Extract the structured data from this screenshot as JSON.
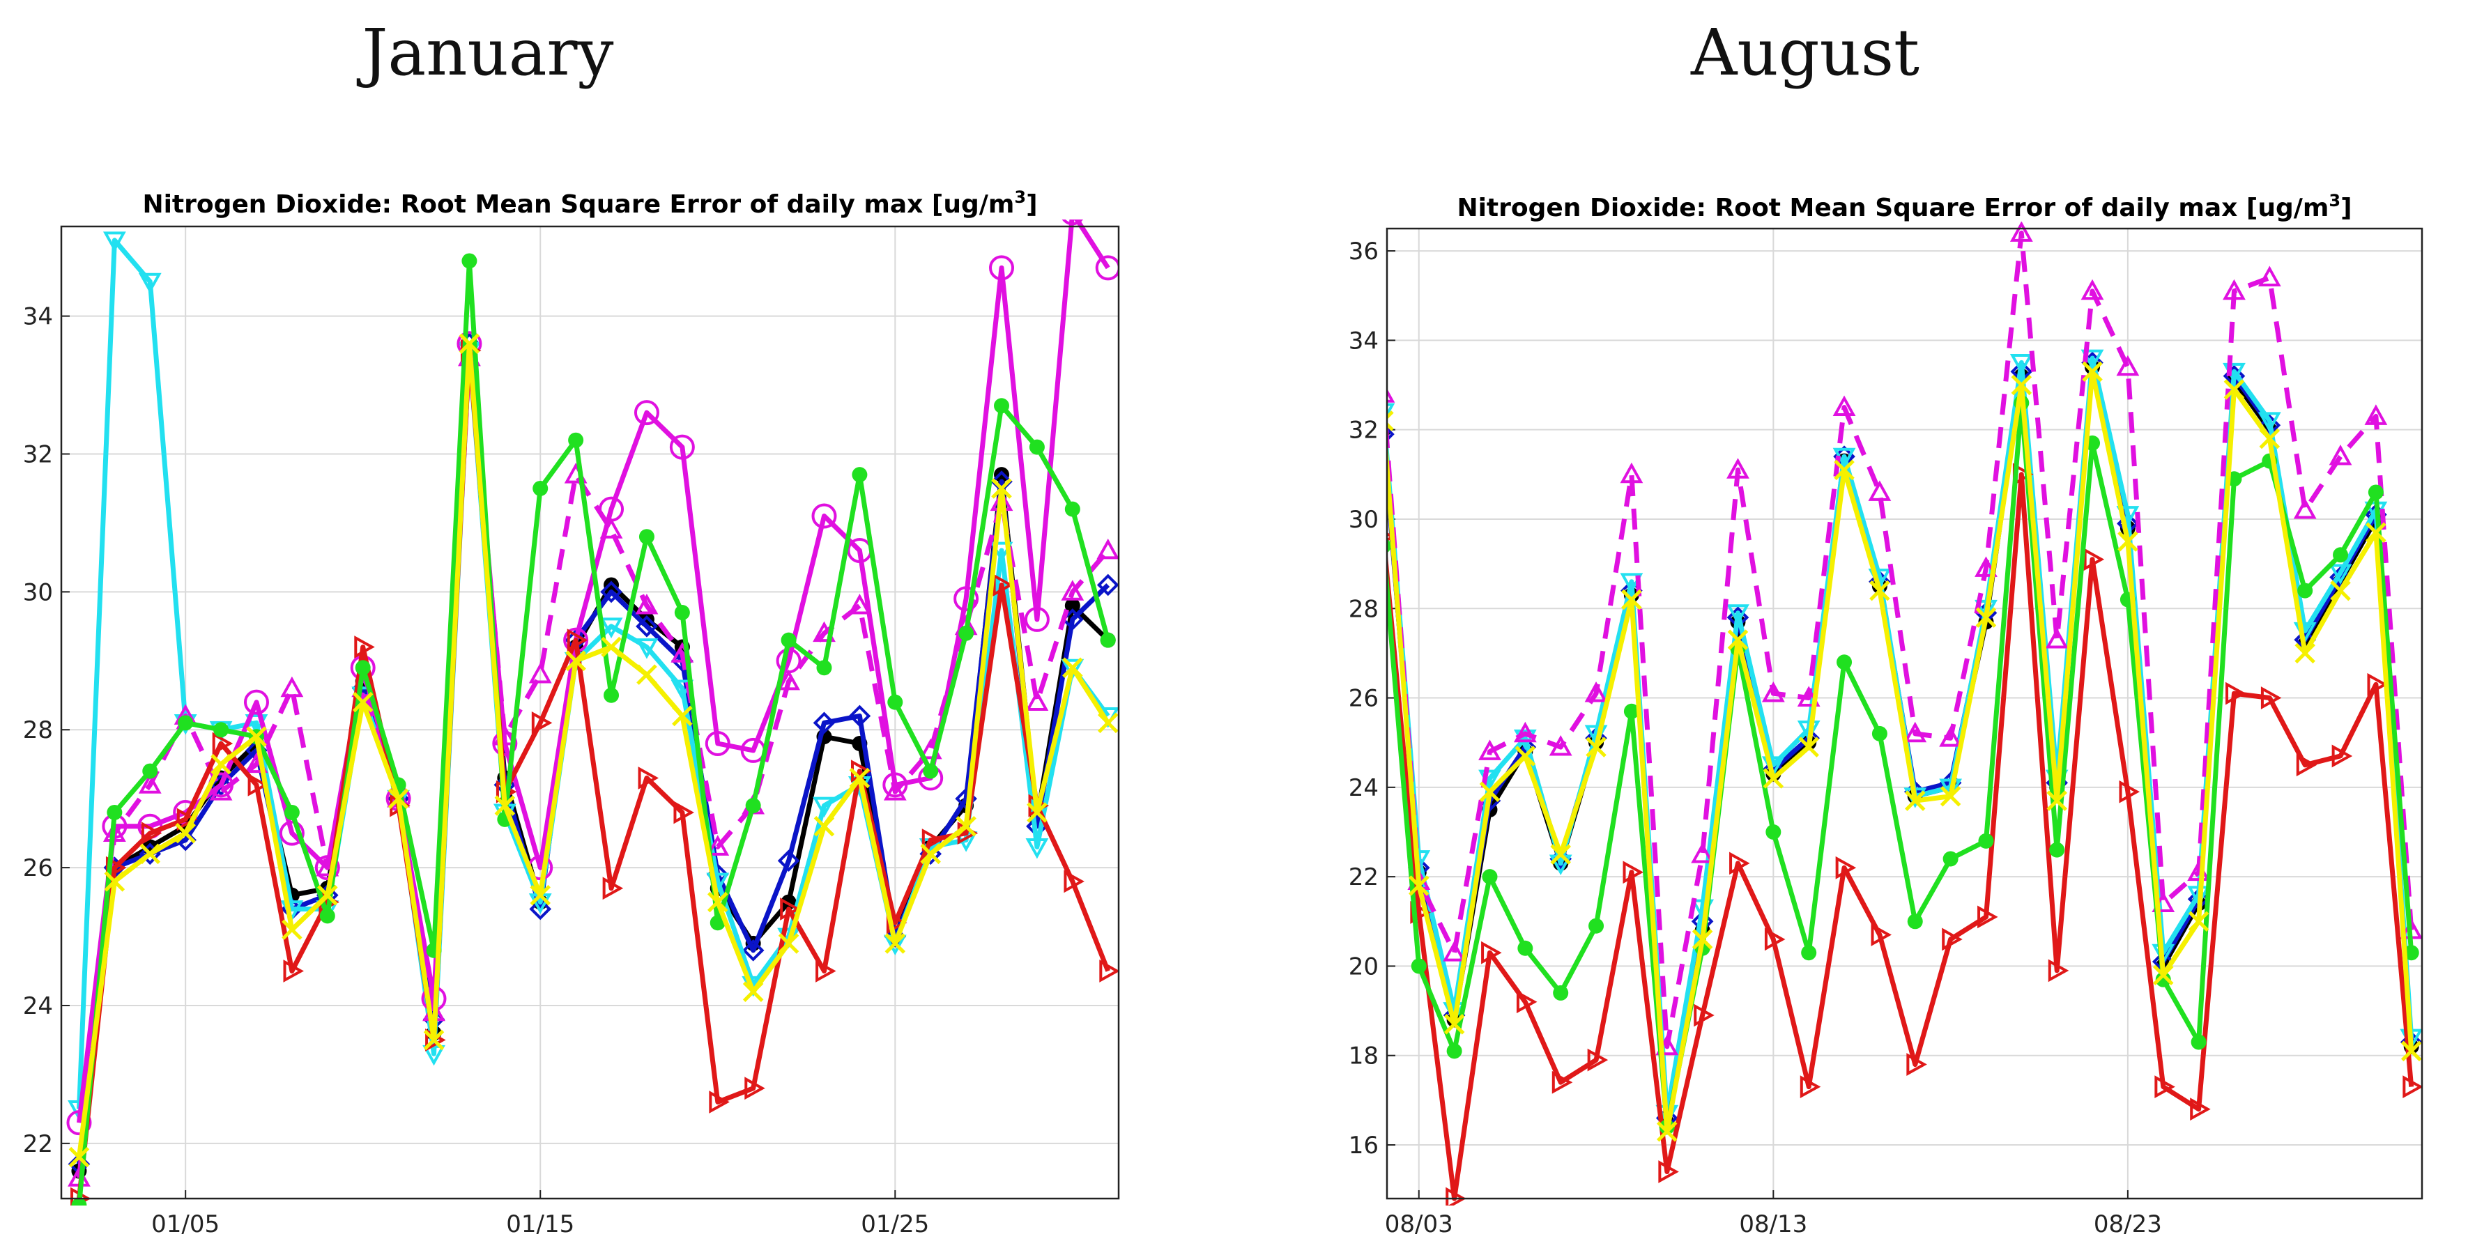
{
  "panels": {
    "left_heading": "January",
    "right_heading": "August"
  },
  "chart_data": [
    {
      "type": "line",
      "title": "Nitrogen Dioxide: Root Mean Square Error of daily max [ug/m³]",
      "title_main": "Nitrogen Dioxide: Root Mean Square Error of daily max [ug/m",
      "title_sup": "3",
      "title_end": "]",
      "xlabel": "",
      "ylabel": "",
      "xlim": [
        1.5,
        31.3
      ],
      "ylim": [
        21.2,
        35.3
      ],
      "yticks": [
        22,
        24,
        26,
        28,
        30,
        32,
        34
      ],
      "xticks": [
        {
          "value": 5,
          "label": "01/05"
        },
        {
          "value": 15,
          "label": "01/15"
        },
        {
          "value": 25,
          "label": "01/25"
        }
      ],
      "x": [
        2,
        3,
        4,
        5,
        6,
        7,
        8,
        9,
        10,
        11,
        12,
        13,
        14,
        15,
        16,
        17,
        18,
        19,
        20,
        21,
        22,
        23,
        24,
        25,
        26,
        27,
        28,
        29,
        30,
        31
      ],
      "series": [
        {
          "name": "black",
          "color": "#000000",
          "marker": "dot",
          "dash": false,
          "values": [
            21.6,
            26.0,
            26.3,
            26.6,
            27.3,
            27.8,
            25.6,
            25.7,
            28.7,
            27.1,
            23.6,
            33.5,
            27.3,
            25.5,
            29.2,
            30.1,
            29.6,
            29.2,
            25.7,
            24.9,
            25.5,
            27.9,
            27.8,
            25.0,
            26.3,
            26.9,
            31.7,
            26.7,
            29.8,
            29.3
          ]
        },
        {
          "name": "blue",
          "color": "#0a14c8",
          "marker": "diamond",
          "dash": false,
          "values": [
            21.7,
            26.0,
            26.2,
            26.4,
            27.2,
            27.7,
            25.4,
            25.6,
            28.6,
            27.0,
            23.8,
            33.6,
            27.2,
            25.4,
            29.3,
            30.0,
            29.5,
            29.0,
            25.9,
            24.8,
            26.1,
            28.1,
            28.2,
            25.0,
            26.2,
            27.0,
            31.6,
            26.6,
            29.6,
            30.1
          ]
        },
        {
          "name": "cyan",
          "color": "#22e0f0",
          "marker": "triangle-down",
          "dash": false,
          "values": [
            22.5,
            35.1,
            34.5,
            28.1,
            28.0,
            28.1,
            25.4,
            25.4,
            28.5,
            27.0,
            23.3,
            33.5,
            26.8,
            25.5,
            29.0,
            29.5,
            29.2,
            28.6,
            25.8,
            24.3,
            25.0,
            26.9,
            27.2,
            24.9,
            26.3,
            26.4,
            30.6,
            26.3,
            28.9,
            28.2
          ]
        },
        {
          "name": "magenta-solid",
          "color": "#e010e0",
          "marker": "circle",
          "dash": false,
          "values": [
            22.3,
            26.6,
            26.6,
            26.8,
            27.2,
            28.4,
            26.5,
            26.0,
            28.9,
            27.0,
            24.1,
            33.6,
            27.8,
            26.0,
            29.3,
            31.2,
            32.6,
            32.1,
            27.8,
            27.7,
            29.0,
            31.1,
            30.6,
            27.2,
            27.3,
            29.9,
            34.7,
            29.6,
            35.5,
            34.7
          ]
        },
        {
          "name": "magenta-dashed",
          "color": "#e010e0",
          "marker": "triangle-up",
          "dash": true,
          "values": [
            21.5,
            26.5,
            27.2,
            28.2,
            27.1,
            27.5,
            28.6,
            26.0,
            28.6,
            27.0,
            23.9,
            33.4,
            27.9,
            28.8,
            31.7,
            30.9,
            29.8,
            29.1,
            26.3,
            26.9,
            28.7,
            29.4,
            29.8,
            27.1,
            27.7,
            29.5,
            31.3,
            28.4,
            30.0,
            30.6
          ]
        },
        {
          "name": "red",
          "color": "#e01818",
          "marker": "triangle-right",
          "dash": false,
          "values": [
            21.2,
            26.0,
            26.5,
            26.7,
            27.8,
            27.2,
            24.5,
            25.5,
            29.2,
            26.9,
            23.5,
            33.5,
            27.1,
            28.1,
            29.3,
            25.7,
            27.3,
            26.8,
            22.6,
            22.8,
            25.4,
            24.5,
            27.4,
            25.2,
            26.4,
            26.5,
            30.1,
            26.9,
            25.8,
            24.5
          ]
        },
        {
          "name": "green",
          "color": "#20e020",
          "marker": "dot",
          "dash": false,
          "values": [
            21.1,
            26.8,
            27.4,
            28.1,
            28.0,
            27.9,
            26.8,
            25.3,
            28.9,
            27.2,
            24.8,
            34.8,
            26.7,
            31.5,
            32.2,
            28.5,
            30.8,
            29.7,
            25.2,
            26.9,
            29.3,
            28.9,
            31.7,
            28.4,
            27.4,
            29.4,
            32.7,
            32.1,
            31.2,
            29.3
          ]
        },
        {
          "name": "yellow",
          "color": "#f5f000",
          "marker": "x",
          "dash": false,
          "values": [
            21.8,
            25.8,
            26.2,
            26.5,
            27.5,
            27.9,
            25.1,
            25.6,
            28.4,
            27.0,
            23.5,
            33.6,
            26.9,
            25.6,
            29.0,
            29.2,
            28.8,
            28.2,
            25.5,
            24.2,
            24.9,
            26.6,
            27.3,
            24.9,
            26.2,
            26.6,
            31.5,
            26.8,
            28.9,
            28.1
          ]
        }
      ]
    },
    {
      "type": "line",
      "title": "Nitrogen Dioxide: Root Mean Square Error of daily max [ug/m³]",
      "title_main": "Nitrogen Dioxide: Root Mean Square Error of daily max [ug/m",
      "title_sup": "3",
      "title_end": "]",
      "xlabel": "",
      "ylabel": "",
      "xlim": [
        2.1,
        31.3
      ],
      "ylim": [
        14.8,
        36.5
      ],
      "yticks": [
        16,
        18,
        20,
        22,
        24,
        26,
        28,
        30,
        32,
        34,
        36
      ],
      "xticks": [
        {
          "value": 3,
          "label": "08/03"
        },
        {
          "value": 13,
          "label": "08/13"
        },
        {
          "value": 23,
          "label": "08/23"
        }
      ],
      "x": [
        2,
        3,
        4,
        5,
        6,
        7,
        8,
        9,
        10,
        11,
        12,
        13,
        14,
        15,
        16,
        17,
        18,
        19,
        20,
        21,
        22,
        23,
        24,
        25,
        26,
        27,
        28,
        29,
        30,
        31
      ],
      "series": [
        {
          "name": "black",
          "color": "#000000",
          "marker": "dot",
          "dash": false,
          "values": [
            32.0,
            22.1,
            18.8,
            23.5,
            24.8,
            22.3,
            25.0,
            28.3,
            16.5,
            20.8,
            27.7,
            24.3,
            25.0,
            31.3,
            28.5,
            23.8,
            24.0,
            27.7,
            33.2,
            24.0,
            33.4,
            29.8,
            20.0,
            21.4,
            33.1,
            32.0,
            27.2,
            28.6,
            30.0,
            18.2
          ]
        },
        {
          "name": "blue",
          "color": "#0a14c8",
          "marker": "diamond",
          "dash": false,
          "values": [
            31.9,
            22.2,
            18.9,
            23.7,
            24.9,
            22.4,
            25.1,
            28.4,
            16.6,
            21.0,
            27.8,
            24.4,
            25.1,
            31.4,
            28.6,
            23.9,
            24.1,
            27.9,
            33.3,
            24.1,
            33.5,
            29.9,
            20.1,
            21.5,
            33.2,
            32.1,
            27.3,
            28.7,
            30.1,
            18.3
          ]
        },
        {
          "name": "cyan",
          "color": "#22e0f0",
          "marker": "triangle-down",
          "dash": false,
          "values": [
            32.4,
            22.4,
            19.0,
            24.2,
            25.1,
            22.3,
            25.2,
            28.6,
            16.7,
            21.3,
            27.9,
            24.5,
            25.3,
            31.4,
            28.7,
            23.8,
            24.0,
            28.0,
            33.5,
            24.2,
            33.6,
            30.1,
            20.3,
            21.6,
            33.3,
            32.2,
            27.5,
            28.8,
            30.2,
            18.4
          ]
        },
        {
          "name": "magenta-dashed",
          "color": "#e010e0",
          "marker": "triangle-up",
          "dash": true,
          "values": [
            32.8,
            21.9,
            20.3,
            24.8,
            25.2,
            24.9,
            26.1,
            31.0,
            18.2,
            22.5,
            31.1,
            26.1,
            26.0,
            32.5,
            30.6,
            25.2,
            25.1,
            28.9,
            36.4,
            27.3,
            35.1,
            33.4,
            21.4,
            22.1,
            35.1,
            35.4,
            30.2,
            31.4,
            32.3,
            20.8
          ]
        },
        {
          "name": "red",
          "color": "#e01818",
          "marker": "triangle-right",
          "dash": false,
          "values": [
            29.6,
            21.2,
            14.8,
            20.3,
            19.2,
            17.4,
            17.9,
            22.1,
            15.4,
            18.9,
            22.3,
            20.6,
            17.3,
            22.2,
            20.7,
            17.8,
            20.6,
            21.1,
            31.0,
            19.9,
            29.1,
            23.9,
            17.3,
            16.8,
            26.1,
            26.0,
            24.5,
            24.7,
            26.3,
            17.3
          ]
        },
        {
          "name": "green",
          "color": "#20e020",
          "marker": "dot",
          "dash": false,
          "values": [
            29.4,
            20.0,
            18.1,
            22.0,
            20.4,
            19.4,
            20.9,
            25.7,
            16.4,
            20.4,
            27.1,
            23.0,
            20.3,
            26.8,
            25.2,
            21.0,
            22.4,
            22.8,
            32.6,
            22.6,
            31.7,
            28.2,
            19.7,
            18.3,
            30.9,
            31.3,
            28.4,
            29.2,
            30.6,
            20.3
          ]
        },
        {
          "name": "yellow",
          "color": "#f5f000",
          "marker": "x",
          "dash": false,
          "values": [
            32.2,
            21.8,
            18.7,
            23.9,
            24.7,
            22.5,
            24.9,
            28.2,
            16.3,
            20.6,
            27.3,
            24.2,
            24.9,
            31.1,
            28.4,
            23.7,
            23.8,
            27.8,
            33.0,
            23.7,
            33.3,
            29.5,
            19.8,
            21.0,
            32.9,
            31.8,
            27.0,
            28.4,
            29.7,
            18.1
          ]
        }
      ]
    }
  ]
}
